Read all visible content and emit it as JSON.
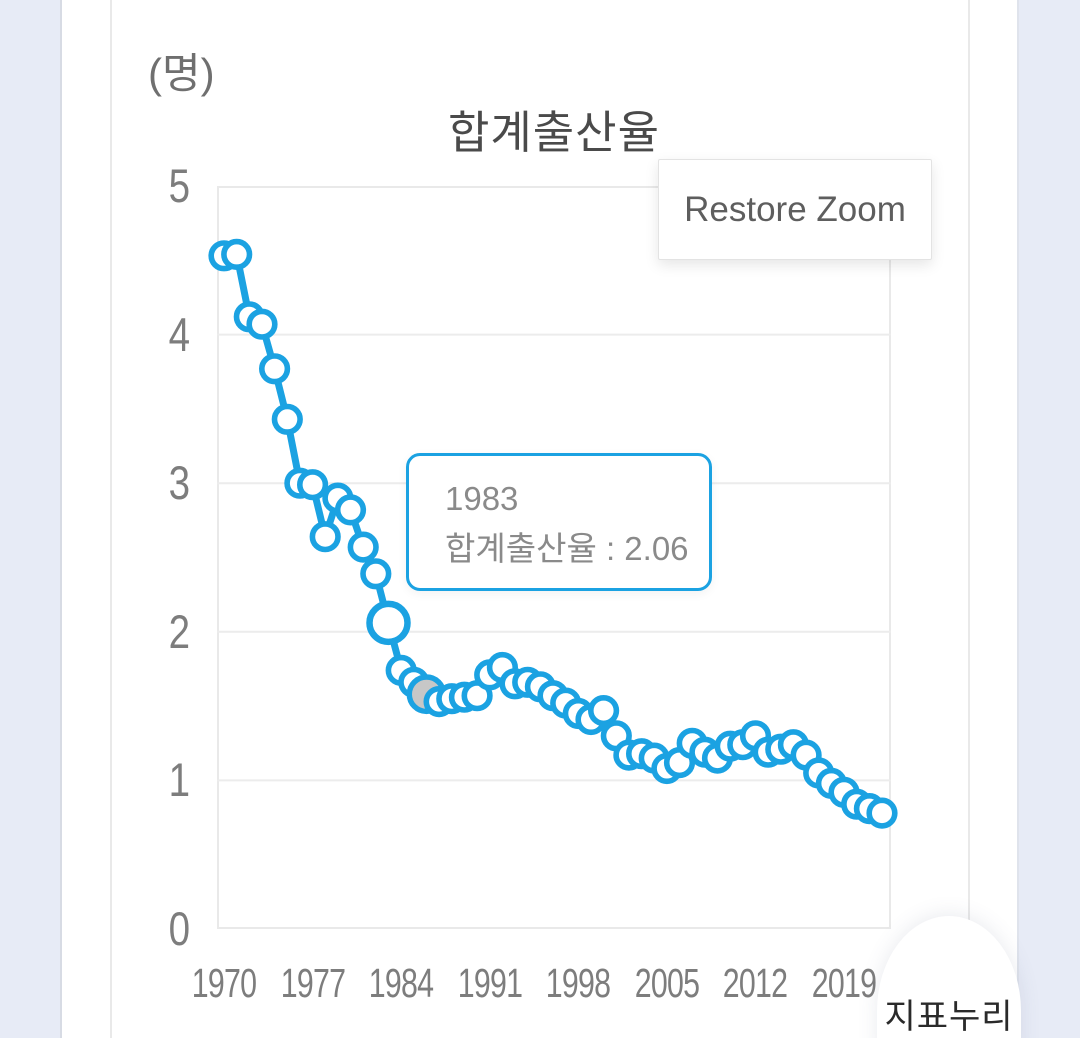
{
  "page": {
    "background_color": "#e7ebf6",
    "card_color": "#ffffff"
  },
  "chart": {
    "unit_label": "(명)",
    "title": "합계출산율",
    "restore_zoom_label": "Restore Zoom",
    "tooltip": {
      "line1": "1983",
      "line2": "합계출산율 : 2.06"
    },
    "brand_label": "지표누리",
    "colors": {
      "line": "#1ba2e2",
      "marker_fill": "#ffffff",
      "selected_marker_fill": "#c7c7c7",
      "grid": "#ececec",
      "tick_text": "#7d7d7d",
      "title_text": "#4a4a4a",
      "tooltip_border": "#1ba2e2",
      "tooltip_text": "#8a8a8a"
    }
  },
  "chart_data": {
    "type": "line",
    "title": "합계출산율",
    "ylabel": "(명)",
    "x": [
      1970,
      1971,
      1972,
      1973,
      1974,
      1975,
      1976,
      1977,
      1978,
      1979,
      1980,
      1981,
      1982,
      1983,
      1984,
      1985,
      1986,
      1987,
      1988,
      1989,
      1990,
      1991,
      1992,
      1993,
      1994,
      1995,
      1996,
      1997,
      1998,
      1999,
      2000,
      2001,
      2002,
      2003,
      2004,
      2005,
      2006,
      2007,
      2008,
      2009,
      2010,
      2011,
      2012,
      2013,
      2014,
      2015,
      2016,
      2017,
      2018,
      2019,
      2020,
      2021,
      2022
    ],
    "values": [
      4.53,
      4.54,
      4.12,
      4.07,
      3.77,
      3.43,
      3.0,
      2.99,
      2.64,
      2.9,
      2.82,
      2.57,
      2.39,
      2.06,
      1.74,
      1.66,
      1.58,
      1.53,
      1.55,
      1.56,
      1.57,
      1.71,
      1.76,
      1.65,
      1.66,
      1.63,
      1.57,
      1.52,
      1.45,
      1.41,
      1.47,
      1.3,
      1.17,
      1.18,
      1.15,
      1.08,
      1.12,
      1.25,
      1.19,
      1.15,
      1.23,
      1.24,
      1.3,
      1.19,
      1.21,
      1.24,
      1.17,
      1.05,
      0.98,
      0.92,
      0.84,
      0.81,
      0.78
    ],
    "x_ticks": [
      1970,
      1977,
      1984,
      1991,
      1998,
      2005,
      2012,
      2019
    ],
    "x_tick_labels": [
      "1970",
      "1977",
      "1984",
      "1991",
      "1998",
      "2005",
      "2012",
      "2019"
    ],
    "y_ticks": [
      0,
      1,
      2,
      3,
      4,
      5
    ],
    "ylim": [
      0,
      5
    ],
    "xlim": [
      1970,
      2022
    ],
    "grid": "horizontal",
    "legend": "none",
    "hover_point": {
      "x": 1983,
      "y": 2.06
    },
    "selected_point": {
      "x": 1986,
      "y": 1.58
    }
  }
}
